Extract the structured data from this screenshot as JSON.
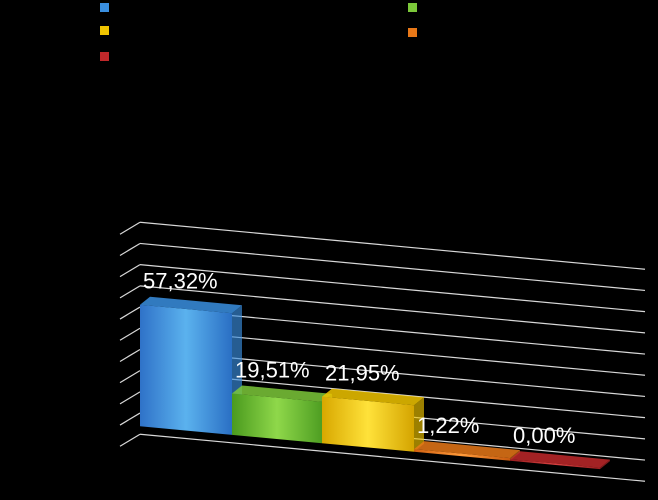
{
  "chart_data": {
    "type": "bar",
    "categories": [
      "",
      "",
      "",
      "",
      ""
    ],
    "values": [
      57.32,
      19.51,
      21.95,
      1.22,
      0.0
    ],
    "data_labels": [
      "57,32%",
      "19,51%",
      "21,95%",
      "1,22%",
      "0,00%"
    ],
    "series_colors": [
      "#3a8fe0",
      "#7cc83a",
      "#f0c400",
      "#e87818",
      "#c0282a"
    ],
    "title": "",
    "xlabel": "",
    "ylabel": "",
    "ylim": [
      0,
      100
    ],
    "grid": true,
    "legend_position": "top",
    "perspective": "3d"
  }
}
